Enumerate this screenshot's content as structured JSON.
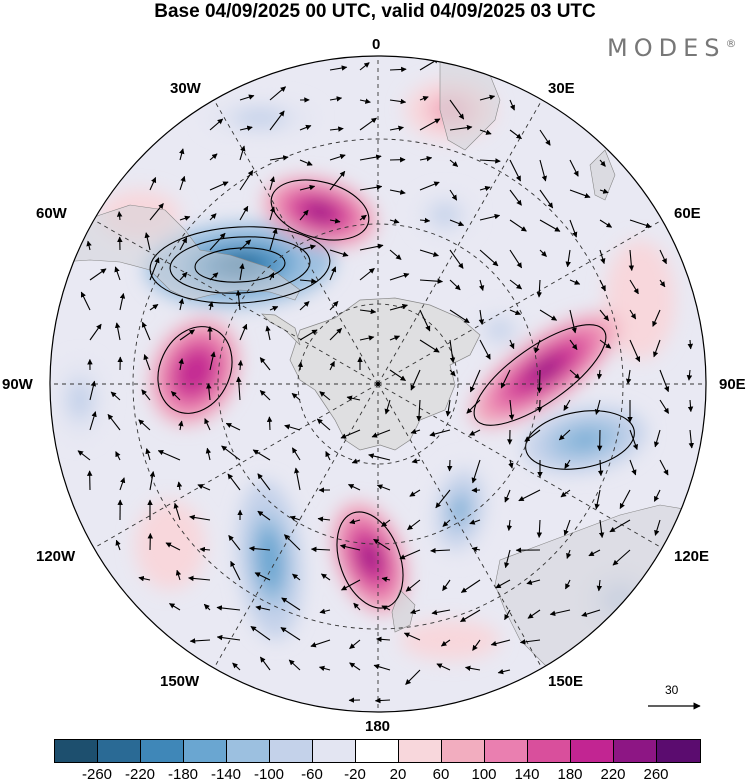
{
  "title": "Base 04/09/2025 00 UTC, valid 04/09/2025 03 UTC",
  "brand": "MODES",
  "brand_mark": "®",
  "projection": "south polar stereographic",
  "longitude_labels": {
    "top": "0",
    "top_right": "30E",
    "right_upper": "60E",
    "right": "90E",
    "right_lower": "120E",
    "bottom_right": "150E",
    "bottom": "180",
    "bottom_left": "150W",
    "left_lower": "120W",
    "left": "90W",
    "left_upper": "60W",
    "top_left": "30W"
  },
  "vector_scale": {
    "label": "30"
  },
  "colorbar": {
    "ticks": [
      "-260",
      "-220",
      "-180",
      "-140",
      "-100",
      "-60",
      "-20",
      "20",
      "60",
      "100",
      "140",
      "180",
      "220",
      "260"
    ],
    "colors": [
      "#1d4f6e",
      "#2a6a95",
      "#3f87b8",
      "#6aa6d1",
      "#9cc0e0",
      "#c4d2ea",
      "#e3e5f2",
      "#ffffff",
      "#f8d7dc",
      "#f2adbf",
      "#ea7fb0",
      "#d94f9c",
      "#c22592",
      "#8d1684",
      "#5b0c6f"
    ]
  },
  "anomaly_centers": [
    {
      "sign": "negative",
      "value": -250
    },
    {
      "sign": "positive",
      "value": 235
    },
    {
      "sign": "positive",
      "value": 215
    },
    {
      "sign": "positive",
      "value": 230
    },
    {
      "sign": "positive",
      "value": 225
    },
    {
      "sign": "negative",
      "value": -150
    },
    {
      "sign": "negative",
      "value": -170
    },
    {
      "sign": "negative",
      "value": -140
    }
  ]
}
